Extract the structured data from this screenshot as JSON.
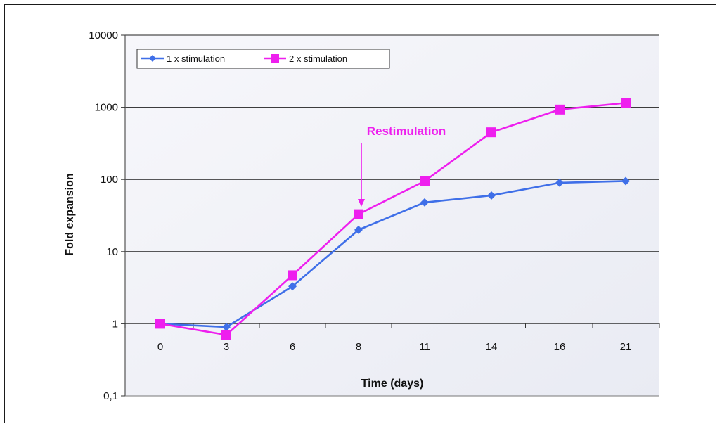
{
  "chart_data": {
    "type": "line",
    "x_scale": "category",
    "y_scale": "log",
    "categories": [
      "0",
      "3",
      "6",
      "8",
      "11",
      "14",
      "16",
      "21"
    ],
    "series": [
      {
        "name": "1 x stimulation",
        "color": "#3f6fe8",
        "marker": "diamond",
        "values": [
          1,
          0.9,
          3.3,
          20,
          48,
          60,
          90,
          95
        ]
      },
      {
        "name": "2 x stimulation",
        "color": "#ee1fee",
        "marker": "square",
        "values": [
          1,
          0.7,
          4.7,
          33,
          95,
          450,
          930,
          1150
        ]
      }
    ],
    "xlabel": "Time (days)",
    "ylabel": "Fold expansion",
    "ylim": [
      0.1,
      10000
    ],
    "y_ticks": [
      "0,1",
      "1",
      "10",
      "100",
      "1000",
      "10000"
    ],
    "grid": "horizontal",
    "legend_position": "top-left",
    "annotation": {
      "text": "Restimulation",
      "category": "8",
      "color": "#ee1fee"
    },
    "plot_background": [
      "#f7f7fb",
      "#e9ebf3"
    ]
  }
}
